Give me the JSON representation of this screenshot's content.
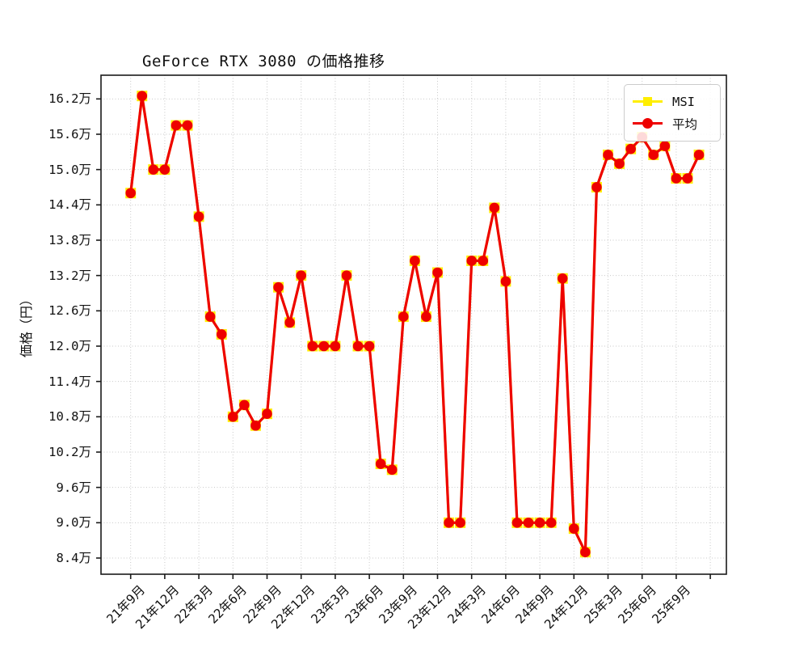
{
  "chart_data": {
    "type": "line",
    "title": "GeForce RTX 3080 の価格推移",
    "ylabel": "価格（円）",
    "y_unit": "万円",
    "grid": true,
    "legend_position": "upper right",
    "x": [
      "21年9月",
      "21年10月",
      "21年11月",
      "21年12月",
      "22年1月",
      "22年2月",
      "22年3月",
      "22年4月",
      "22年5月",
      "22年6月",
      "22年7月",
      "22年8月",
      "22年9月",
      "22年10月",
      "22年11月",
      "22年12月",
      "23年1月",
      "23年2月",
      "23年3月",
      "23年4月",
      "23年5月",
      "23年6月",
      "23年7月",
      "23年8月",
      "23年9月",
      "23年10月",
      "23年11月",
      "23年12月",
      "24年1月",
      "24年2月",
      "24年3月",
      "24年4月",
      "24年5月",
      "24年6月",
      "24年7月",
      "24年8月",
      "24年9月",
      "24年10月",
      "24年11月",
      "24年12月",
      "25年1月",
      "25年2月",
      "25年3月",
      "25年4月",
      "25年5月",
      "25年6月",
      "25年7月",
      "25年8月",
      "25年9月",
      "25年10月",
      "25年11月"
    ],
    "series": [
      {
        "name": "MSI",
        "color": "#ffee00",
        "marker": "square",
        "values": [
          14.6,
          16.25,
          15.0,
          15.0,
          15.75,
          15.75,
          14.2,
          12.5,
          12.2,
          10.8,
          11.0,
          10.65,
          10.85,
          13.0,
          12.4,
          13.2,
          12.0,
          12.0,
          12.0,
          13.2,
          12.0,
          12.0,
          10.0,
          9.9,
          12.5,
          13.45,
          12.5,
          13.25,
          9.0,
          9.0,
          13.45,
          13.45,
          14.35,
          13.1,
          9.0,
          9.0,
          9.0,
          9.0,
          13.15,
          8.9,
          8.5,
          14.7,
          15.25,
          15.1,
          15.35,
          15.55,
          15.25,
          15.4,
          14.85,
          14.85,
          15.25
        ]
      },
      {
        "name": "平均",
        "color": "#ee0000",
        "marker": "circle",
        "values": [
          14.6,
          16.25,
          15.0,
          15.0,
          15.75,
          15.75,
          14.2,
          12.5,
          12.2,
          10.8,
          11.0,
          10.65,
          10.85,
          13.0,
          12.4,
          13.2,
          12.0,
          12.0,
          12.0,
          13.2,
          12.0,
          12.0,
          10.0,
          9.9,
          12.5,
          13.45,
          12.5,
          13.25,
          9.0,
          9.0,
          13.45,
          13.45,
          14.35,
          13.1,
          9.0,
          9.0,
          9.0,
          9.0,
          13.15,
          8.9,
          8.5,
          14.7,
          15.25,
          15.1,
          15.35,
          15.55,
          15.25,
          15.4,
          14.85,
          14.85,
          15.25
        ]
      }
    ],
    "x_tick_labels": [
      "21年9月",
      "21年12月",
      "22年3月",
      "22年6月",
      "22年9月",
      "22年12月",
      "23年3月",
      "23年6月",
      "23年9月",
      "23年12月",
      "24年3月",
      "24年6月",
      "24年9月",
      "24年12月",
      "25年3月",
      "25年6月",
      "25年9月"
    ],
    "x_tick_every_months": 3,
    "x_extra_unlabeled_tick": true,
    "y_tick_values": [
      8.4,
      9.0,
      9.6,
      10.2,
      10.8,
      11.4,
      12.0,
      12.6,
      13.2,
      13.8,
      14.4,
      15.0,
      15.6,
      16.2
    ],
    "y_tick_labels": [
      "8.4万",
      "9.0万",
      "9.6万",
      "10.2万",
      "10.8万",
      "11.4万",
      "12.0万",
      "12.6万",
      "13.2万",
      "13.8万",
      "14.4万",
      "15.0万",
      "15.6万",
      "16.2万"
    ],
    "ylim": [
      8.12,
      16.62
    ],
    "colors": {
      "grid": "#c8c8c8",
      "spine": "#1a1a1a",
      "text": "#111111"
    }
  }
}
